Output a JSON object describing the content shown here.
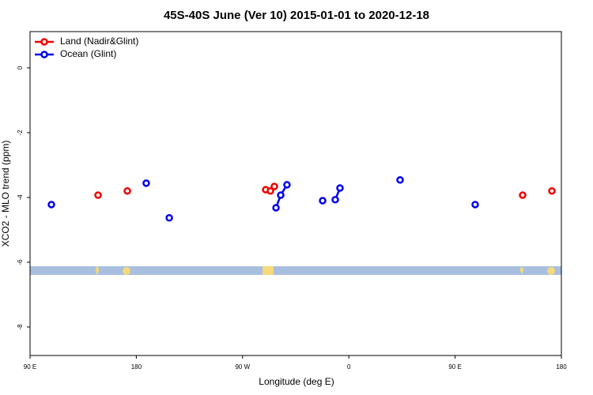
{
  "chart_data": {
    "type": "line",
    "title": "45S-40S June (Ver 10)   2015-01-01 to 2020-12-18",
    "x_label": "Longitude (deg E)",
    "y_label": "XCO2 - MLO trend (ppm)",
    "xlim": [
      90,
      540
    ],
    "xticks": [
      {
        "value": 90,
        "label": "90 E"
      },
      {
        "value": 180,
        "label": "180"
      },
      {
        "value": 270,
        "label": "90 W"
      },
      {
        "value": 360,
        "label": "0"
      },
      {
        "value": 450,
        "label": "90 E"
      },
      {
        "value": 540,
        "label": "180"
      }
    ],
    "ylim": [
      -8.88,
      1.12
    ],
    "yticks": [
      0,
      -2,
      -4,
      -6,
      -8
    ],
    "legend": "top-left",
    "series": [
      {
        "name": "Land (Nadir&Glint)",
        "color": "#ee0000",
        "x": [
          147.6,
          null,
          172.4,
          null,
          289.6,
          293.6,
          296.9,
          null,
          507.2,
          null,
          532.0
        ],
        "values": [
          -3.93,
          null,
          -3.8,
          null,
          -3.76,
          -3.8,
          -3.66,
          null,
          -3.93,
          null,
          -3.8
        ]
      },
      {
        "name": "Ocean (Glint)",
        "color": "#0000ee",
        "x": [
          108.1,
          null,
          188.4,
          null,
          207.9,
          null,
          298.3,
          302.3,
          307.6,
          null,
          337.8,
          null,
          348.5,
          352.5,
          null,
          403.4,
          null,
          467.0
        ],
        "values": [
          -4.22,
          null,
          -3.56,
          null,
          -4.63,
          null,
          -4.32,
          -3.93,
          -3.61,
          null,
          -4.1,
          null,
          -4.07,
          -3.71,
          null,
          -3.46,
          null,
          -4.22
        ]
      }
    ]
  }
}
